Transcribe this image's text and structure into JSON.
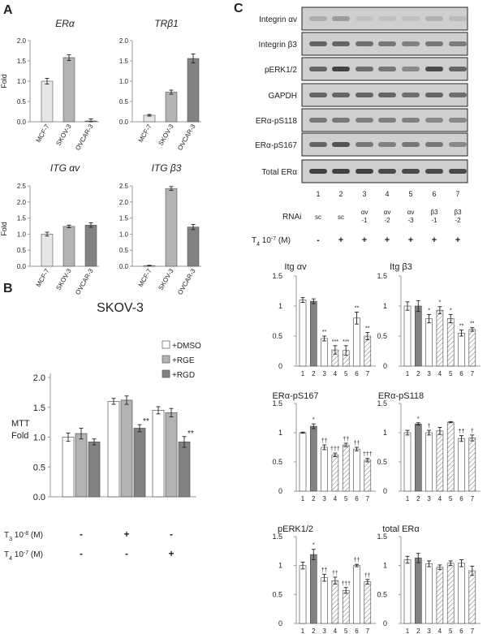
{
  "panel_labels": {
    "A": "A",
    "B": "B",
    "C": "C"
  },
  "cell_lines": [
    "MCF-7",
    "SKOV-3",
    "OVCAR-3"
  ],
  "fold_label": "Fold",
  "colors": {
    "light": "#e6e6e6",
    "mid": "#b3b3b3",
    "dark": "#828282",
    "white": "#ffffff",
    "axis": "#999999"
  },
  "panelB": {
    "title": "SKOV-3",
    "ylabel_lines": [
      "MTT",
      "Fold"
    ],
    "legend": [
      "+DMSO",
      "+RGE",
      "+RGD"
    ],
    "treat_rows": [
      {
        "label_main": "T",
        "label_sub": "3",
        "label_rest": " 10",
        "label_exp": "-8",
        "label_unit": " (M)",
        "marks": [
          "-",
          "+",
          "-"
        ]
      },
      {
        "label_main": "T",
        "label_sub": "4",
        "label_rest": " 10",
        "label_exp": "-7",
        "label_unit": " (M)",
        "marks": [
          "-",
          "-",
          "+"
        ]
      }
    ]
  },
  "blot": {
    "rows": [
      "Integrin αv",
      "Integrin β3",
      "pERK1/2",
      "GAPDH",
      "ERα-pS118",
      "ERα-pS167",
      "Total ERα"
    ],
    "lanes": [
      "1",
      "2",
      "3",
      "4",
      "5",
      "6",
      "7"
    ],
    "rnai_label": "RNAi",
    "rnai": [
      [
        "sc"
      ],
      [
        "sc"
      ],
      [
        "αv",
        "-1"
      ],
      [
        "αv",
        "-2"
      ],
      [
        "αv",
        "-3"
      ],
      [
        "β3",
        "-1"
      ],
      [
        "β3",
        "-2"
      ]
    ],
    "t4_main": "T",
    "t4_sub": "4",
    "t4_rest": " 10",
    "t4_exp": "-7",
    "t4_unit": " (M)",
    "t4": [
      "-",
      "+",
      "+",
      "+",
      "+",
      "+",
      "+"
    ]
  },
  "chart_data": [
    {
      "panel": "A",
      "type": "bar",
      "title": "ERα",
      "ylabel": "Fold",
      "categories": [
        "MCF-7",
        "SKOV-3",
        "OVCAR-3"
      ],
      "values": [
        1.0,
        1.58,
        0.02
      ],
      "errors": [
        0.07,
        0.07,
        0.05
      ],
      "ylim": [
        0,
        2.0
      ],
      "yticks": [
        "0.0",
        "0.5",
        "1.0",
        "1.5",
        "2.0"
      ]
    },
    {
      "panel": "A",
      "type": "bar",
      "title": "TRβ1",
      "ylabel": "",
      "categories": [
        "MCF-7",
        "SKOV-3",
        "OVCAR-3"
      ],
      "values": [
        0.16,
        0.73,
        1.56
      ],
      "errors": [
        0.02,
        0.05,
        0.11
      ],
      "ylim": [
        0,
        2.0
      ],
      "yticks": [
        "0.0",
        "0.5",
        "1.0",
        "1.5",
        "2.0"
      ]
    },
    {
      "panel": "A",
      "type": "bar",
      "title": "ITG αv",
      "ylabel": "Fold",
      "categories": [
        "MCF-7",
        "SKOV-3",
        "OVCAR-3"
      ],
      "values": [
        1.0,
        1.24,
        1.28
      ],
      "errors": [
        0.06,
        0.04,
        0.07
      ],
      "ylim": [
        0,
        2.5
      ],
      "yticks": [
        "0.0",
        "0.5",
        "1.0",
        "1.5",
        "2.0",
        "2.5"
      ]
    },
    {
      "panel": "A",
      "type": "bar",
      "title": "ITG β3",
      "ylabel": "",
      "categories": [
        "MCF-7",
        "SKOV-3",
        "OVCAR-3"
      ],
      "values": [
        0.02,
        2.42,
        1.22
      ],
      "errors": [
        0.01,
        0.06,
        0.08
      ],
      "ylim": [
        0,
        2.5
      ],
      "yticks": [
        "0.0",
        "0.5",
        "1.0",
        "1.5",
        "2.0",
        "2.5"
      ]
    },
    {
      "panel": "B",
      "type": "bar",
      "title": "SKOV-3",
      "ylabel": "MTT Fold",
      "categories": [
        "group1",
        "group2",
        "group3"
      ],
      "series": [
        {
          "name": "+DMSO",
          "values": [
            1.0,
            1.6,
            1.45
          ],
          "errors": [
            0.07,
            0.05,
            0.06
          ]
        },
        {
          "name": "+RGE",
          "values": [
            1.06,
            1.62,
            1.41
          ],
          "errors": [
            0.09,
            0.07,
            0.07
          ]
        },
        {
          "name": "+RGD",
          "values": [
            0.92,
            1.15,
            0.92
          ],
          "errors": [
            0.05,
            0.06,
            0.09
          ]
        }
      ],
      "annotations": [
        {
          "group": 1,
          "series": 2,
          "text": "**"
        },
        {
          "group": 2,
          "series": 2,
          "text": "**"
        }
      ],
      "ylim": [
        0,
        2.0
      ],
      "yticks": [
        "0.0",
        "0.5",
        "1.0",
        "1.5",
        "2.0"
      ]
    },
    {
      "panel": "C",
      "type": "bar",
      "title": "Itg αv",
      "categories": [
        "1",
        "2",
        "3",
        "4",
        "5",
        "6",
        "7"
      ],
      "values": [
        1.1,
        1.08,
        0.46,
        0.27,
        0.26,
        0.8,
        0.5
      ],
      "errors": [
        0.04,
        0.04,
        0.04,
        0.07,
        0.08,
        0.1,
        0.06
      ],
      "sig": [
        "",
        "",
        "**",
        "***",
        "***",
        "**",
        "**"
      ],
      "ylim": [
        0,
        1.5
      ],
      "yticks": [
        "0",
        "0.5",
        "1",
        "1.5"
      ]
    },
    {
      "panel": "C",
      "type": "bar",
      "title": "Itg β3",
      "categories": [
        "1",
        "2",
        "3",
        "4",
        "5",
        "6",
        "7"
      ],
      "values": [
        1.0,
        1.0,
        0.79,
        0.93,
        0.79,
        0.55,
        0.61
      ],
      "errors": [
        0.07,
        0.09,
        0.07,
        0.06,
        0.07,
        0.05,
        0.03
      ],
      "sig": [
        "",
        "",
        "*",
        "*",
        "*",
        "**",
        "**"
      ],
      "ylim": [
        0,
        1.5
      ],
      "yticks": [
        "0",
        "0.5",
        "1",
        "1.5"
      ]
    },
    {
      "panel": "C",
      "type": "bar",
      "title": "ERα-pS167",
      "categories": [
        "1",
        "2",
        "3",
        "4",
        "5",
        "6",
        "7"
      ],
      "values": [
        1.0,
        1.11,
        0.75,
        0.62,
        0.79,
        0.72,
        0.53
      ],
      "errors": [
        0.01,
        0.04,
        0.04,
        0.03,
        0.03,
        0.03,
        0.03
      ],
      "sig": [
        "",
        "*",
        "††",
        "†††",
        "††",
        "††",
        "†††"
      ],
      "ylim": [
        0,
        1.5
      ],
      "yticks": [
        "0",
        "0.5",
        "1",
        "1.5"
      ]
    },
    {
      "panel": "C",
      "type": "bar",
      "title": "ERα-pS118",
      "categories": [
        "1",
        "2",
        "3",
        "4",
        "5",
        "6",
        "7"
      ],
      "values": [
        1.0,
        1.15,
        1.0,
        1.03,
        1.18,
        0.9,
        0.91
      ],
      "errors": [
        0.04,
        0.02,
        0.04,
        0.06,
        0.01,
        0.05,
        0.05
      ],
      "sig": [
        "",
        "*",
        "†",
        "",
        "",
        "††",
        "†"
      ],
      "ylim": [
        0,
        1.5
      ],
      "yticks": [
        "0",
        "0.5",
        "1",
        "1.5"
      ]
    },
    {
      "panel": "C",
      "type": "bar",
      "title": "pERK1/2",
      "categories": [
        "1",
        "2",
        "3",
        "4",
        "5",
        "6",
        "7"
      ],
      "values": [
        1.0,
        1.19,
        0.79,
        0.74,
        0.57,
        1.0,
        0.72
      ],
      "errors": [
        0.06,
        0.09,
        0.06,
        0.06,
        0.05,
        0.02,
        0.04
      ],
      "sig": [
        "",
        "*",
        "††",
        "††",
        "†††",
        "††",
        "††"
      ],
      "ylim": [
        0,
        1.5
      ],
      "yticks": [
        "0",
        "0.5",
        "1",
        "1.5"
      ]
    },
    {
      "panel": "C",
      "type": "bar",
      "title": "total ERα",
      "categories": [
        "1",
        "2",
        "3",
        "4",
        "5",
        "6",
        "7"
      ],
      "values": [
        1.1,
        1.13,
        1.03,
        0.97,
        1.04,
        1.04,
        0.91
      ],
      "errors": [
        0.06,
        0.08,
        0.05,
        0.04,
        0.04,
        0.06,
        0.08
      ],
      "sig": [
        "",
        "",
        "",
        "",
        "",
        "",
        ""
      ],
      "ylim": [
        0,
        1.5
      ],
      "yticks": [
        "0",
        "0.5",
        "1",
        "1.5"
      ]
    }
  ]
}
